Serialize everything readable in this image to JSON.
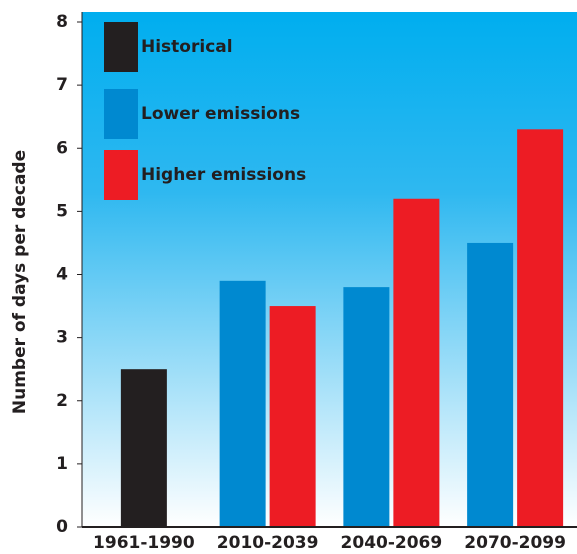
{
  "chart_data": {
    "type": "bar",
    "y_label": "Number of days per decade",
    "categories": [
      "1961-1990",
      "2010-2039",
      "2040-2069",
      "2070-2099"
    ],
    "series": [
      {
        "name": "Historical",
        "color": "#231f20",
        "values": [
          2.5,
          null,
          null,
          null
        ]
      },
      {
        "name": "Lower emissions",
        "color": "#0089d0",
        "values": [
          null,
          3.9,
          3.8,
          4.5
        ]
      },
      {
        "name": "Higher emissions",
        "color": "#ed1c24",
        "values": [
          null,
          3.5,
          5.2,
          6.3
        ]
      }
    ],
    "ylim": [
      0,
      8
    ],
    "yticks": [
      0,
      1,
      2,
      3,
      4,
      5,
      6,
      7,
      8
    ],
    "legend": "top-left"
  }
}
